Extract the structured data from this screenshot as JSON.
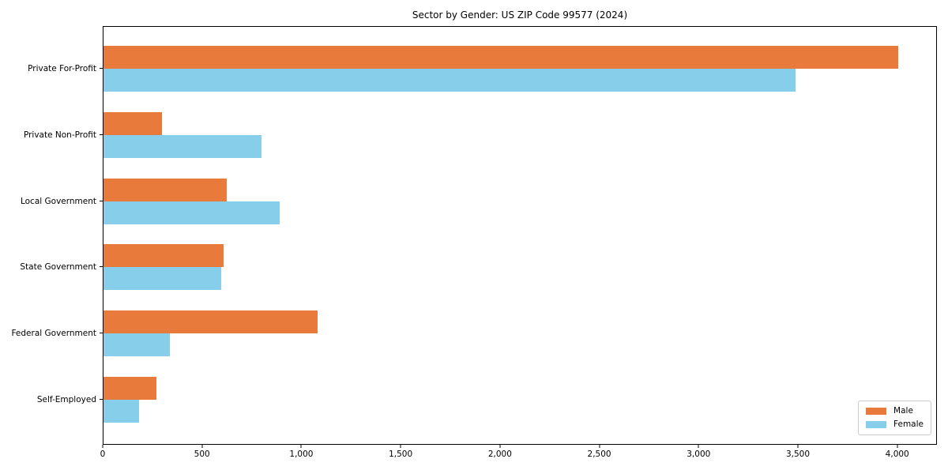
{
  "title": "Sector by Gender: US ZIP Code 99577 (2024)",
  "colors": {
    "male": "#E87A3C",
    "female": "#87CEEB",
    "axis": "#000000",
    "legend_border": "#CCCCCC",
    "background": "#FFFFFF"
  },
  "chart_data": {
    "type": "bar",
    "orientation": "horizontal",
    "title": "Sector by Gender: US ZIP Code 99577 (2024)",
    "categories": [
      "Private For-Profit",
      "Private Non-Profit",
      "Local Government",
      "State Government",
      "Federal Government",
      "Self-Employed"
    ],
    "series": [
      {
        "name": "Male",
        "color": "#E87A3C",
        "values": [
          4010,
          295,
          620,
          605,
          1080,
          265
        ]
      },
      {
        "name": "Female",
        "color": "#87CEEB",
        "values": [
          3490,
          795,
          890,
          595,
          335,
          180
        ]
      }
    ],
    "xlabel": "",
    "ylabel": "",
    "xlim": [
      0,
      4200
    ],
    "x_ticks": [
      0,
      500,
      1000,
      1500,
      2000,
      2500,
      3000,
      3500,
      4000
    ],
    "x_tick_labels": [
      "0",
      "500",
      "1,000",
      "1,500",
      "2,000",
      "2,500",
      "3,000",
      "3,500",
      "4,000"
    ],
    "grid": false,
    "legend_position": "lower right"
  },
  "legend": {
    "items": [
      {
        "label": "Male",
        "color": "#E87A3C"
      },
      {
        "label": "Female",
        "color": "#87CEEB"
      }
    ]
  }
}
